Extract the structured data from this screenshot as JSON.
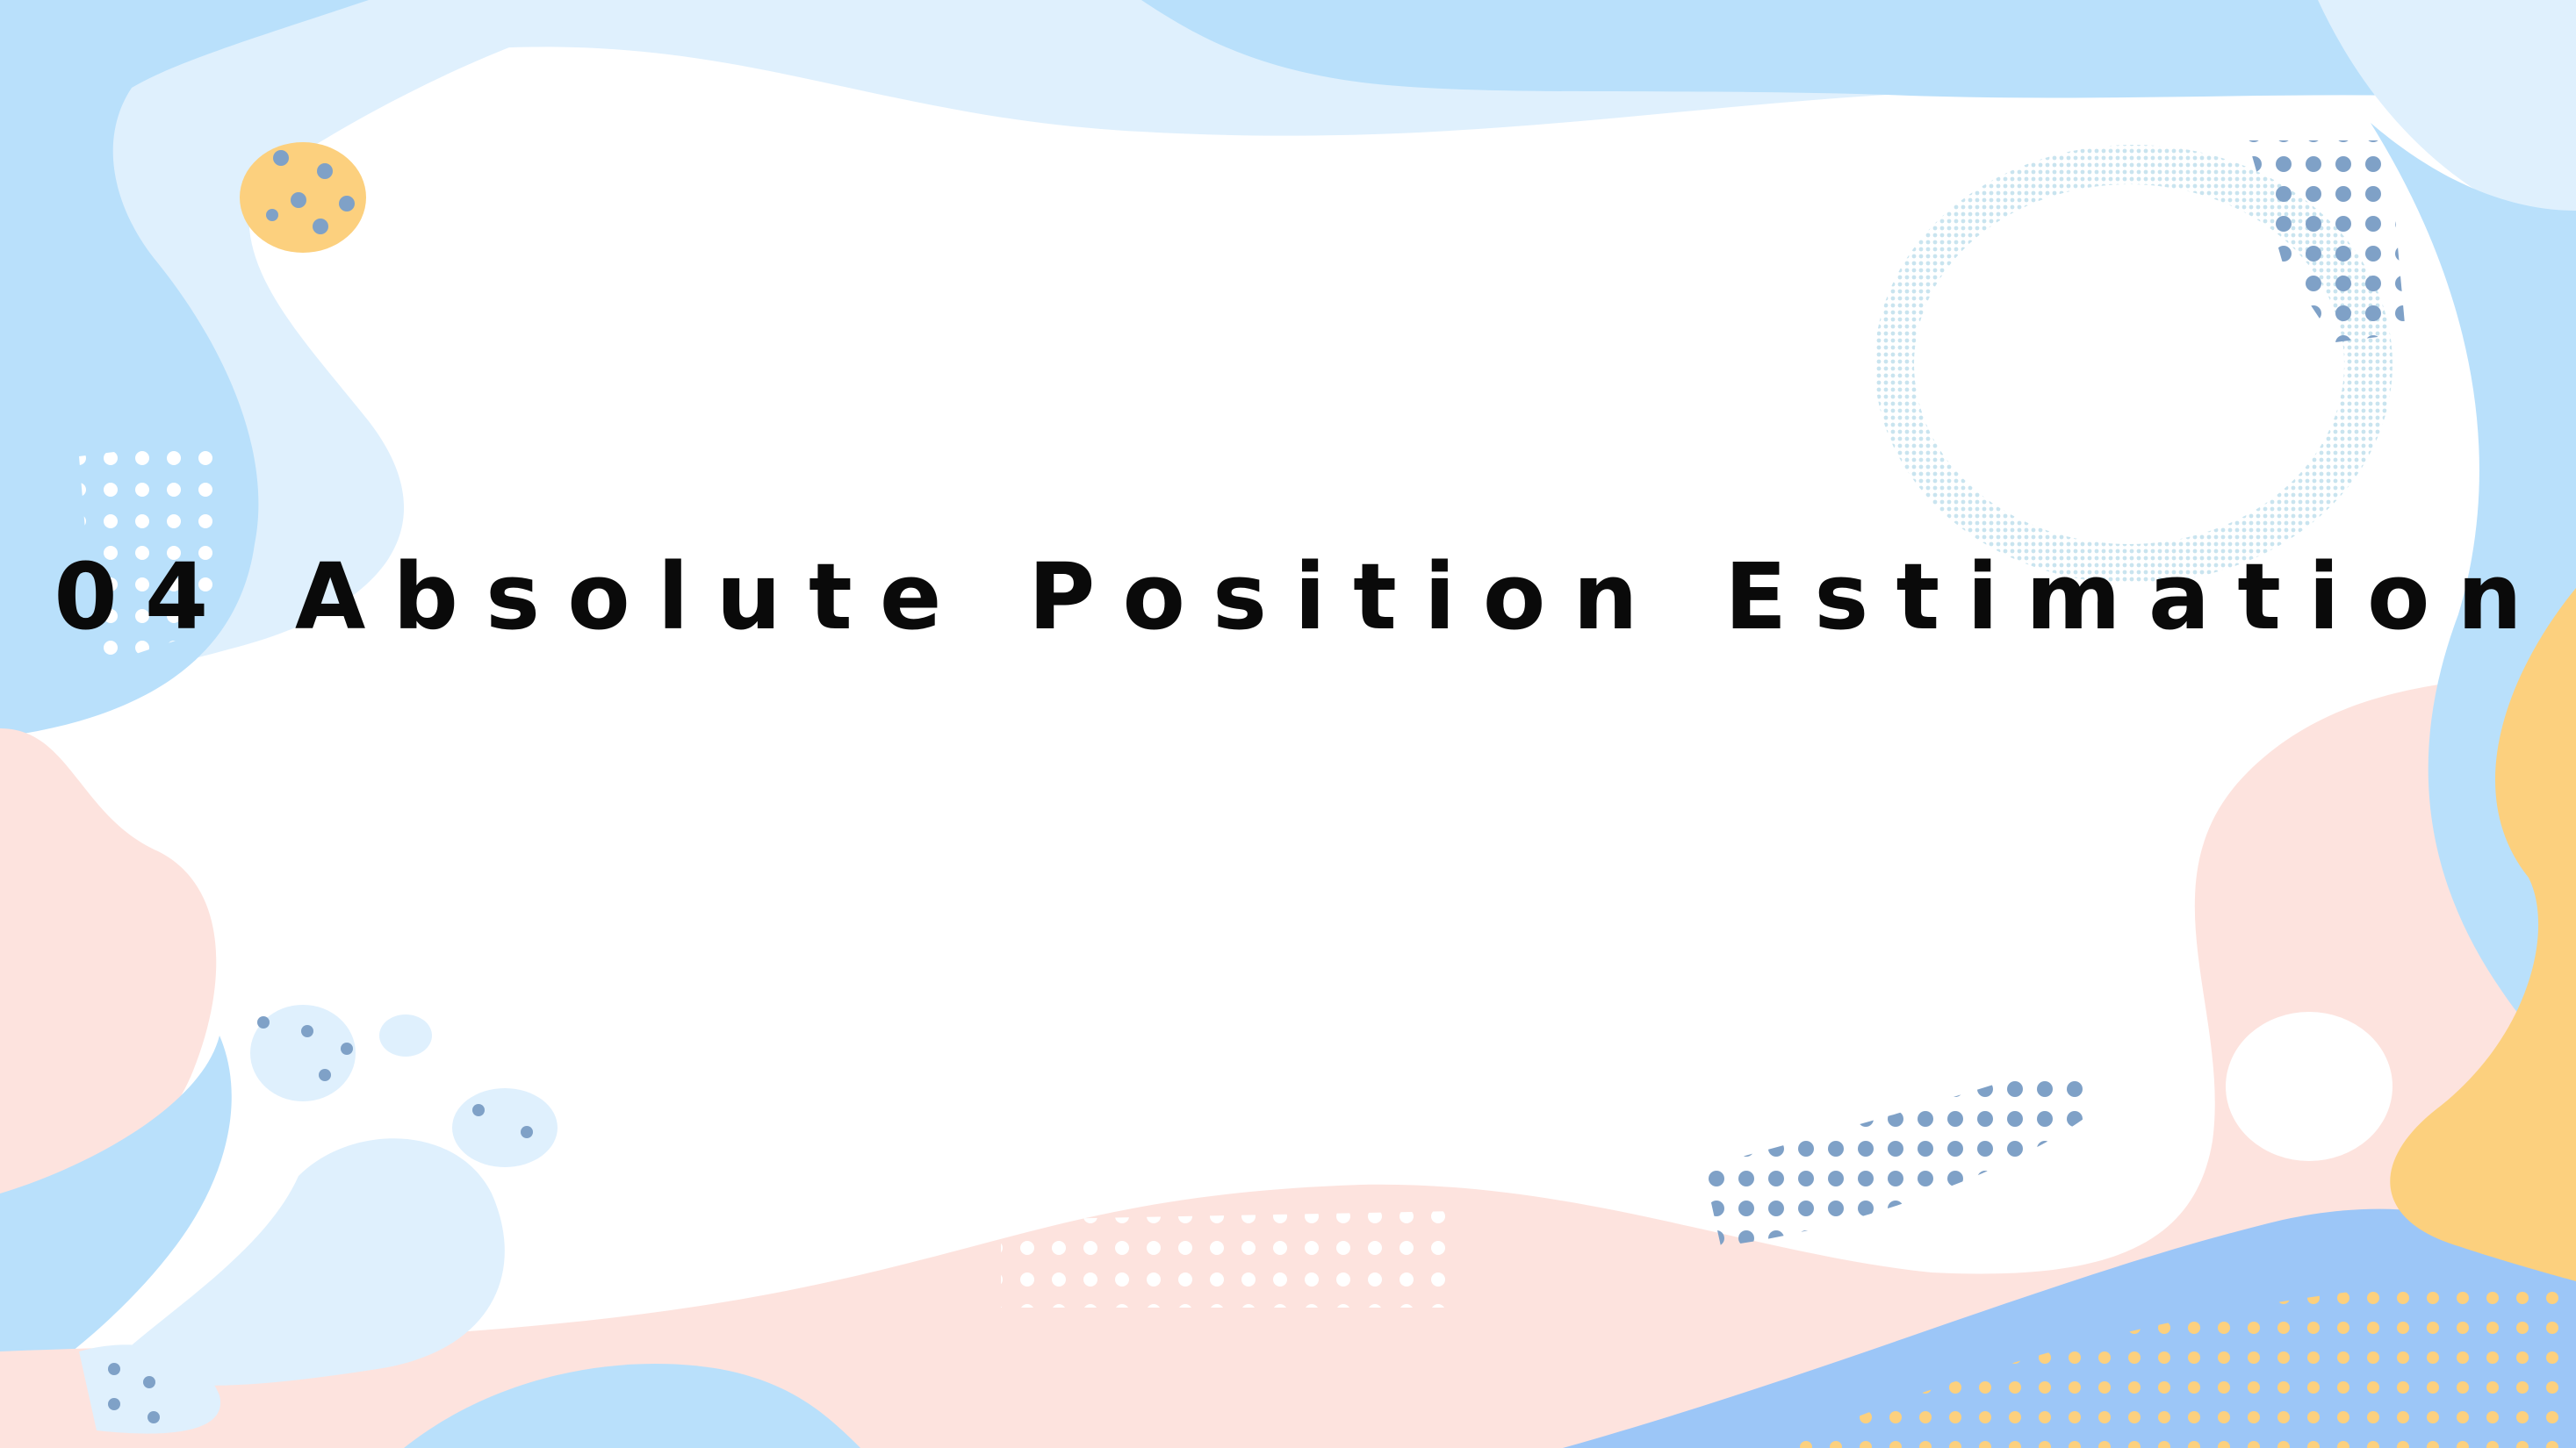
{
  "slide": {
    "title": "04 Absolute Position Estimation"
  },
  "colors": {
    "light_blue": "#b9e0fb",
    "pale_blue": "#dff0fd",
    "blue": "#9cc6f7",
    "peach": "#fde3de",
    "yellow": "#fcd07e",
    "dot_blue": "#7fa1c7",
    "dot_white": "#ffffff"
  },
  "decorations": {
    "background_style": "abstract blobs",
    "dot_pattern_icon": "halftone-dots"
  }
}
